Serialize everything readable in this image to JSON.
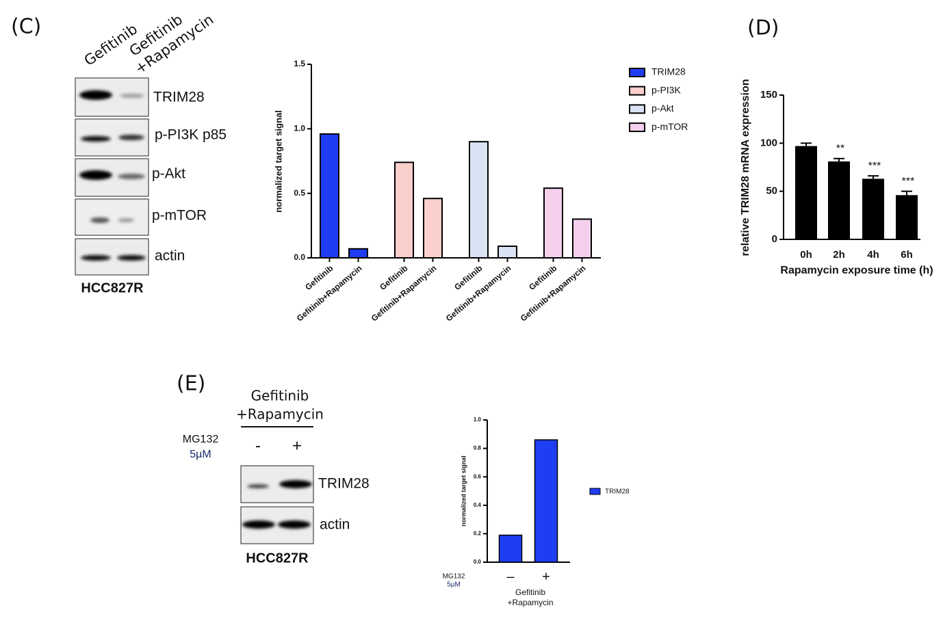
{
  "panel_labels": [
    "(C)",
    "(D)",
    "(E)"
  ],
  "blot_c": {
    "lanes": [
      "Gefitinib",
      [
        "Gefitinib",
        "+Rapamycin"
      ]
    ],
    "rows": [
      "TRIM28",
      "p-PI3K p85",
      "p-Akt",
      "p-mTOR",
      "actin"
    ],
    "cell_line": "HCC827R"
  },
  "blot_e": {
    "header": [
      "Gefitinib",
      "+Rapamycin"
    ],
    "treatment": [
      "MG132",
      "5µM"
    ],
    "lanes": [
      "-",
      "+"
    ],
    "rows": [
      "TRIM28",
      "actin"
    ],
    "cell_line": "HCC827R"
  },
  "chart_data": [
    {
      "type": "grouped_bar",
      "ylabel": "normalized target signal",
      "categories": [
        "Gefitinib",
        "Gefitinib+Rapamycin"
      ],
      "series": [
        {
          "name": "TRIM28",
          "color": "#1f3df2",
          "values": [
            0.96,
            0.07
          ]
        },
        {
          "name": "p-PI3K",
          "color": "#fbcfcc",
          "values": [
            0.74,
            0.46
          ]
        },
        {
          "name": "p-Akt",
          "color": "#dae3f4",
          "values": [
            0.9,
            0.09
          ]
        },
        {
          "name": "p-mTOR",
          "color": "#f4d0ec",
          "values": [
            0.54,
            0.3
          ]
        }
      ],
      "ylim": [
        0,
        1.5
      ],
      "yticks": [
        {
          "value": 0,
          "label": "0.0"
        },
        {
          "value": 0.5,
          "label": "0.5"
        },
        {
          "value": 1,
          "label": "1.0"
        },
        {
          "value": 1.5,
          "label": "1.5"
        }
      ],
      "legend": "right"
    },
    {
      "type": "bar",
      "ylabel": "relative TRIM28 mRNA expression",
      "xlabel": "Rapamycin exposure time (h)",
      "categories": [
        "0h",
        "2h",
        "4h",
        "6h"
      ],
      "values": [
        97,
        81,
        63,
        46
      ],
      "errors": [
        3,
        3,
        3,
        4
      ],
      "significance": [
        null,
        "**",
        "***",
        "***"
      ],
      "color": "#000000",
      "ylim": [
        0,
        150
      ],
      "yticks": [
        0,
        50,
        100,
        150
      ]
    },
    {
      "type": "bar",
      "ylabel": "normalized target signal",
      "categories": [
        "–",
        "+"
      ],
      "row_label": [
        "MG132",
        "5µM"
      ],
      "group_label": [
        "Gefitinib",
        "+Rapamycin"
      ],
      "series": [
        {
          "name": "TRIM28",
          "color": "#1f3df2",
          "values": [
            0.19,
            0.86
          ]
        }
      ],
      "ylim": [
        0,
        1.0
      ],
      "yticks": [
        {
          "value": 0,
          "label": "0.0"
        },
        {
          "value": 0.2,
          "label": "0.2"
        },
        {
          "value": 0.4,
          "label": "0.4"
        },
        {
          "value": 0.6,
          "label": "0.6"
        },
        {
          "value": 0.8,
          "label": "0.8"
        },
        {
          "value": 1.0,
          "label": "1.0"
        }
      ],
      "legend": "right"
    }
  ]
}
